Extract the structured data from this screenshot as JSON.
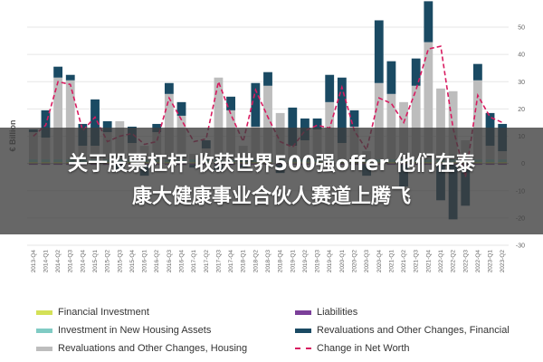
{
  "chart_data": {
    "type": "bar",
    "ylabel": "€ Billion",
    "ylim": [
      -30,
      50
    ],
    "yticks": [
      50,
      40,
      30,
      20,
      10,
      0,
      -10,
      -20,
      -30
    ],
    "grid": true,
    "legend_position": "bottom",
    "categories": [
      "2013-Q4",
      "2014-Q1",
      "2014-Q2",
      "2014-Q3",
      "2014-Q4",
      "2015-Q1",
      "2015-Q2",
      "2015-Q3",
      "2015-Q4",
      "2016-Q1",
      "2016-Q2",
      "2016-Q3",
      "2016-Q4",
      "2017-Q1",
      "2017-Q2",
      "2017-Q3",
      "2017-Q4",
      "2018-Q1",
      "2018-Q2",
      "2018-Q3",
      "2018-Q4",
      "2019-Q1",
      "2019-Q2",
      "2019-Q3",
      "2019-Q4",
      "2020-Q1",
      "2020-Q2",
      "2020-Q3",
      "2020-Q4",
      "2021-Q1",
      "2021-Q2",
      "2021-Q3",
      "2021-Q4",
      "2022-Q1",
      "2022-Q2",
      "2022-Q3",
      "2022-Q4",
      "2023-Q1",
      "2023-Q2"
    ],
    "series": [
      {
        "name": "Financial Investment",
        "color": "#d4e157",
        "values": [
          0.5,
          0.5,
          0.5,
          0.5,
          0.5,
          0.5,
          0.5,
          0.5,
          0.5,
          0.5,
          0.5,
          0.5,
          0.5,
          0.5,
          0.5,
          0.5,
          0.5,
          0.5,
          0.5,
          0.5,
          0.5,
          0.5,
          0.5,
          0.5,
          0.5,
          0.5,
          0.5,
          0.5,
          0.5,
          0.5,
          0.5,
          0.5,
          0.5,
          0.5,
          0.5,
          0.5,
          0.5,
          0.5,
          0.5
        ]
      },
      {
        "name": "Investment in New Housing Assets",
        "color": "#80cbc4",
        "values": [
          1,
          1,
          1,
          1,
          1,
          1,
          1,
          1,
          1,
          1,
          1,
          1,
          1,
          1,
          1,
          1,
          1,
          1,
          1,
          1,
          1,
          1,
          1,
          1,
          1,
          1,
          1,
          1,
          1,
          1,
          1,
          1,
          1,
          1,
          1,
          1,
          1,
          1,
          1
        ]
      },
      {
        "name": "Revaluations and Other Changes, Housing",
        "color": "#bdbdbd",
        "values": [
          10,
          8,
          30,
          29,
          5,
          5,
          10,
          14,
          6,
          5,
          10,
          24,
          16,
          2,
          4,
          30,
          18,
          5,
          12,
          27,
          17,
          5,
          7,
          11,
          21,
          6,
          12,
          3,
          28,
          24,
          21,
          27,
          43,
          26,
          25,
          7,
          29,
          5,
          3
        ]
      },
      {
        "name": "Liabilities",
        "color": "#7b3f99",
        "values": [
          -0.5,
          -0.5,
          -0.5,
          -0.5,
          -0.5,
          -0.5,
          -0.5,
          -0.5,
          -0.5,
          -0.5,
          -0.5,
          -0.5,
          -0.5,
          -0.5,
          -0.5,
          -0.5,
          -0.5,
          -0.5,
          -0.5,
          -0.5,
          -0.5,
          -0.5,
          -0.5,
          -0.5,
          -0.5,
          -0.5,
          -0.5,
          -0.5,
          -0.5,
          -0.5,
          -0.5,
          -0.5,
          -0.5,
          -0.5,
          -0.5,
          -0.5,
          -0.5,
          -0.5,
          -0.5
        ]
      },
      {
        "name": "Revaluations and Other Changes, Financial",
        "color": "#1a4a63",
        "values": [
          1,
          10,
          4,
          2,
          8,
          17,
          4,
          -2,
          6,
          -4,
          3,
          4,
          5,
          -1,
          3,
          -2,
          5,
          -1,
          16,
          5,
          -3,
          14,
          8,
          4,
          10,
          24,
          6,
          -4,
          23,
          12,
          -8,
          10,
          15,
          -13,
          -20,
          -15,
          6,
          12,
          10
        ]
      },
      {
        "name": "Change in Net Worth",
        "color": "#d81b60",
        "type": "line",
        "values": [
          10,
          14,
          30,
          29,
          12,
          17,
          8,
          10,
          11,
          7,
          8,
          24,
          16,
          8,
          9,
          30,
          18,
          8,
          27,
          17,
          8,
          6,
          12,
          14,
          13,
          28,
          12,
          5,
          24,
          22,
          15,
          27,
          42,
          43,
          13,
          -5,
          25,
          17,
          15
        ]
      }
    ],
    "legend": [
      {
        "label": "Financial Investment",
        "color": "#d4e157",
        "kind": "swatch"
      },
      {
        "label": "Liabilities",
        "color": "#7b3f99",
        "kind": "swatch"
      },
      {
        "label": "Investment in New Housing Assets",
        "color": "#80cbc4",
        "kind": "swatch"
      },
      {
        "label": "Revaluations and Other Changes, Financial",
        "color": "#1a4a63",
        "kind": "swatch"
      },
      {
        "label": "Revaluations and Other Changes, Housing",
        "color": "#bdbdbd",
        "kind": "swatch"
      },
      {
        "label": "Change in Net Worth",
        "color": "#d81b60",
        "kind": "dash"
      }
    ]
  },
  "overlay": {
    "line1": "关于股票杠杆 收获世界500强offer 他们在泰",
    "line2": "康大健康事业合伙人赛道上腾飞"
  }
}
